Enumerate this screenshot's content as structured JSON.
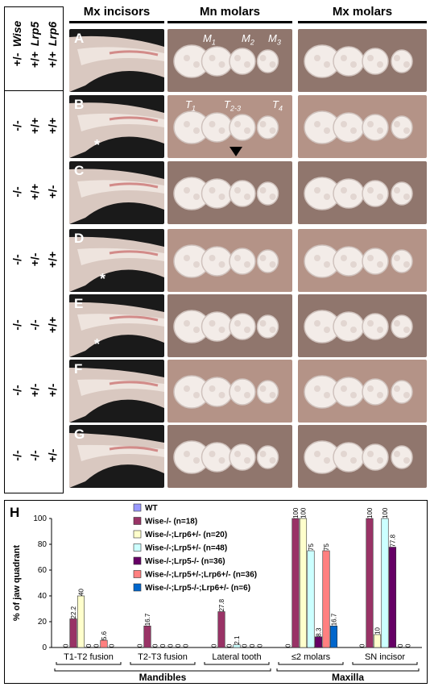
{
  "columns": {
    "incisors": "Mx incisors",
    "mn_molars": "Mn molars",
    "mx_molars": "Mx molars"
  },
  "genes": [
    "Wise",
    "Lrp5",
    "Lrp6"
  ],
  "rows": [
    {
      "label": "A",
      "genotype": [
        "+/-",
        "+/+",
        "+/+"
      ]
    },
    {
      "label": "B",
      "genotype": [
        "-/-",
        "+/+",
        "+/+"
      ]
    },
    {
      "label": "C",
      "genotype": [
        "-/-",
        "+/+",
        "+/-"
      ]
    },
    {
      "label": "D",
      "genotype": [
        "-/-",
        "+/-",
        "+/+"
      ]
    },
    {
      "label": "E",
      "genotype": [
        "-/-",
        "-/-",
        "+/+"
      ]
    },
    {
      "label": "F",
      "genotype": [
        "-/-",
        "+/-",
        "+/-"
      ]
    },
    {
      "label": "G",
      "genotype": [
        "-/-",
        "-/-",
        "+/-"
      ]
    }
  ],
  "tooth_labels_A": [
    "M1",
    "M2",
    "M3"
  ],
  "tooth_labels_B": [
    "T1",
    "T2-3",
    "T4"
  ],
  "asterisk": "*",
  "panel_h": {
    "label": "H",
    "chart_data": {
      "type": "bar",
      "ylabel": "% of jaw quadrant",
      "ylim": [
        0,
        100
      ],
      "yticks": [
        "0",
        "20",
        "40",
        "60",
        "80",
        "100"
      ],
      "categories": [
        "T1-T2 fusion",
        "T2-T3 fusion",
        "Lateral tooth",
        "≤2 molars",
        "SN incisor"
      ],
      "groups": [
        {
          "name": "Mandibles",
          "categories": [
            0,
            1,
            2
          ]
        },
        {
          "name": "Maxilla",
          "categories": [
            3,
            4
          ]
        }
      ],
      "series": [
        {
          "name": "WT",
          "color": "#9999ff",
          "values": [
            0,
            0,
            0,
            0,
            0
          ],
          "labels": [
            "0",
            "0",
            "0",
            "0",
            "0"
          ]
        },
        {
          "name": "Wise-/- (n=18)",
          "color": "#993366",
          "values": [
            22.2,
            16.7,
            27.8,
            100,
            100
          ],
          "labels": [
            "22.2",
            "16.7",
            "27.8",
            "100",
            "100"
          ]
        },
        {
          "name": "Wise-/-;Lrp6+/- (n=20)",
          "color": "#ffffcc",
          "values": [
            40,
            0,
            0,
            100,
            10
          ],
          "labels": [
            "40",
            "0",
            "0",
            "100",
            "10"
          ]
        },
        {
          "name": "Wise-/-;Lrp5+/- (n=48)",
          "color": "#ccffff",
          "values": [
            0,
            0,
            2.1,
            75,
            100
          ],
          "labels": [
            "0",
            "0",
            "2.1",
            "75",
            "100"
          ]
        },
        {
          "name": "Wise-/-;Lrp5-/- (n=36)",
          "color": "#660066",
          "values": [
            0,
            0,
            0,
            8.3,
            77.8
          ],
          "labels": [
            "0",
            "0",
            "0",
            "8.3",
            "77.8"
          ]
        },
        {
          "name": "Wise-/-;Lrp5+/-;Lrp6+/- (n=36)",
          "color": "#ff8080",
          "values": [
            5.6,
            0,
            0,
            75,
            0
          ],
          "labels": [
            "5.6",
            "0",
            "0",
            "75",
            "0"
          ]
        },
        {
          "name": "Wise-/-;Lrp5-/-;Lrp6+/- (n=6)",
          "color": "#0066cc",
          "values": [
            0,
            0,
            0,
            16.7,
            0
          ],
          "labels": [
            "0",
            "0",
            "0",
            "16.7",
            "0"
          ]
        }
      ]
    }
  }
}
